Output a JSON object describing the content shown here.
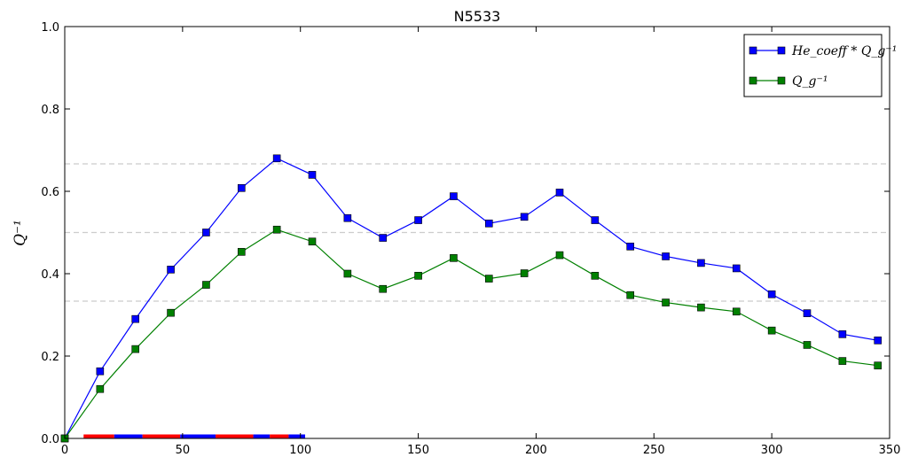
{
  "chart_data": {
    "type": "line",
    "title": "N5533",
    "xlabel": "",
    "ylabel": "Q⁻¹",
    "xlim": [
      0,
      350
    ],
    "ylim": [
      0,
      1.0
    ],
    "x_ticks": [
      0,
      50,
      100,
      150,
      200,
      250,
      300,
      350
    ],
    "y_ticks": [
      0.0,
      0.2,
      0.4,
      0.6,
      0.8,
      1.0
    ],
    "x_tick_labels": [
      "0",
      "50",
      "100",
      "150",
      "200",
      "250",
      "300",
      "350"
    ],
    "y_tick_labels": [
      "0.0",
      "0.2",
      "0.4",
      "0.6",
      "0.8",
      "1.0"
    ],
    "reference_lines_y": [
      0.6667,
      0.5,
      0.3333
    ],
    "reference_line_color": "#cccccc",
    "legend_position": "top-right",
    "x": [
      0,
      15,
      30,
      45,
      60,
      75,
      90,
      105,
      120,
      135,
      150,
      165,
      180,
      195,
      210,
      225,
      240,
      255,
      270,
      285,
      300,
      315,
      330,
      345
    ],
    "series": [
      {
        "name": "He_coeff * Q_g⁻¹",
        "color": "#0000ff",
        "marker": "square",
        "values": [
          0.0,
          0.163,
          0.29,
          0.41,
          0.5,
          0.608,
          0.68,
          0.64,
          0.535,
          0.487,
          0.53,
          0.588,
          0.522,
          0.538,
          0.597,
          0.53,
          0.466,
          0.442,
          0.426,
          0.413,
          0.35,
          0.304,
          0.253,
          0.238
        ]
      },
      {
        "name": "Q_g⁻¹",
        "color": "#008000",
        "marker": "square",
        "values": [
          0.0,
          0.12,
          0.217,
          0.305,
          0.373,
          0.453,
          0.507,
          0.478,
          0.4,
          0.363,
          0.395,
          0.438,
          0.388,
          0.401,
          0.445,
          0.395,
          0.348,
          0.33,
          0.318,
          0.308,
          0.262,
          0.227,
          0.188,
          0.177
        ]
      }
    ],
    "baseline_segments": [
      {
        "x0": 8,
        "x1": 21,
        "color": "#ff0000"
      },
      {
        "x0": 21,
        "x1": 33,
        "color": "#0000ff"
      },
      {
        "x0": 33,
        "x1": 49,
        "color": "#ff0000"
      },
      {
        "x0": 49,
        "x1": 64,
        "color": "#0000ff"
      },
      {
        "x0": 64,
        "x1": 80,
        "color": "#ff0000"
      },
      {
        "x0": 80,
        "x1": 87,
        "color": "#0000ff"
      },
      {
        "x0": 87,
        "x1": 95,
        "color": "#ff0000"
      },
      {
        "x0": 95,
        "x1": 102,
        "color": "#0000ff"
      }
    ]
  }
}
